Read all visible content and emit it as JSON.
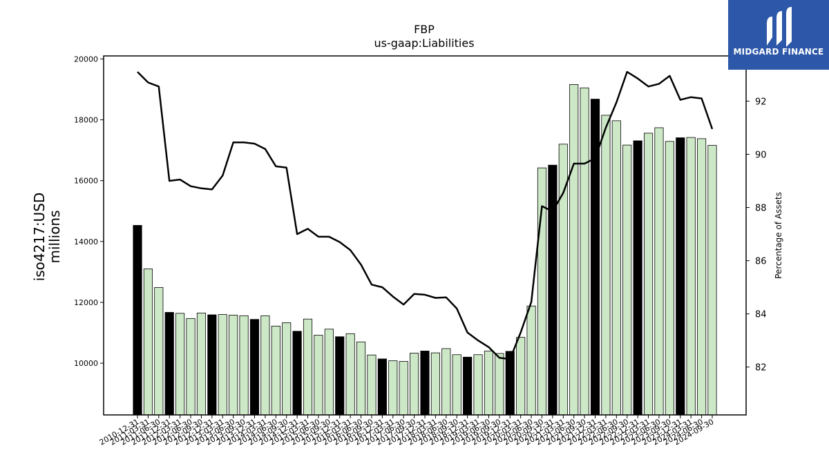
{
  "chart_data": {
    "type": "bar+line",
    "title": "FBP",
    "subtitle": "us-gaap:Liabilities",
    "ylabel_left": "iso4217:USD\nmillions",
    "ylabel_right": "Percentage of Assets",
    "ylim_left": [
      8300,
      20100
    ],
    "ylim_right": [
      80.2,
      93.7
    ],
    "yticks_left": [
      10000,
      12000,
      14000,
      16000,
      18000,
      20000
    ],
    "yticks_right": [
      82,
      84,
      86,
      88,
      90,
      92
    ],
    "grid": false,
    "legend": "none",
    "colors": {
      "bar_q4": "#000000",
      "bar_other": "#cce8c6",
      "bar_edge": "#000000",
      "line": "#000000"
    },
    "categories": [
      "2010-12-31",
      "2011-03-31",
      "2011-06-30",
      "2011-12-31",
      "2012-03-31",
      "2012-06-30",
      "2012-09-30",
      "2012-12-31",
      "2013-03-31",
      "2013-06-30",
      "2013-09-30",
      "2013-12-31",
      "2014-03-31",
      "2014-06-30",
      "2014-09-30",
      "2014-12-31",
      "2015-03-31",
      "2015-06-30",
      "2015-09-30",
      "2015-12-31",
      "2016-03-31",
      "2016-06-30",
      "2016-09-30",
      "2016-12-31",
      "2017-03-31",
      "2017-06-30",
      "2017-09-30",
      "2017-12-31",
      "2018-03-31",
      "2018-06-30",
      "2018-09-30",
      "2018-12-31",
      "2019-03-31",
      "2019-06-30",
      "2019-09-30",
      "2019-12-31",
      "2020-03-31",
      "2020-06-30",
      "2020-09-30",
      "2020-12-31",
      "2021-03-31",
      "2021-06-30",
      "2021-09-30",
      "2021-12-31",
      "2022-03-31",
      "2022-06-30",
      "2022-09-30",
      "2022-12-31",
      "2023-03-31",
      "2023-06-30",
      "2023-09-30",
      "2023-12-31",
      "2024-03-31",
      "2024-06-30",
      "2024-09-30"
    ],
    "series": [
      {
        "kind": "bar",
        "values": [
          14530,
          13100,
          12490,
          11670,
          11640,
          11470,
          11650,
          11590,
          11600,
          11580,
          11560,
          11440,
          11560,
          11220,
          11330,
          11050,
          11450,
          10920,
          11120,
          10870,
          10970,
          10700,
          10270,
          10140,
          10080,
          10060,
          10330,
          10400,
          10340,
          10480,
          10280,
          10200,
          10280,
          10400,
          10320,
          10390,
          10850,
          11880,
          16420,
          16510,
          17200,
          19160,
          19050,
          18680,
          18150,
          17970,
          17170,
          17310,
          17560,
          17740,
          17290,
          17410,
          17420,
          17380,
          17160
        ],
        "q4": [
          true,
          false,
          false,
          true,
          false,
          false,
          false,
          true,
          false,
          false,
          false,
          true,
          false,
          false,
          false,
          true,
          false,
          false,
          false,
          true,
          false,
          false,
          false,
          true,
          false,
          false,
          false,
          true,
          false,
          false,
          false,
          true,
          false,
          false,
          false,
          true,
          false,
          false,
          false,
          true,
          false,
          false,
          false,
          true,
          false,
          false,
          false,
          true,
          false,
          false,
          false,
          true,
          false,
          false,
          false
        ]
      },
      {
        "kind": "line",
        "axis": "right",
        "values": [
          93.1,
          92.7,
          92.55,
          89.0,
          89.05,
          88.8,
          88.72,
          88.68,
          89.2,
          90.45,
          90.45,
          90.4,
          90.2,
          89.55,
          89.5,
          87.0,
          87.2,
          86.9,
          86.9,
          86.7,
          86.4,
          85.85,
          85.1,
          85.0,
          84.65,
          84.35,
          84.75,
          84.72,
          84.6,
          84.62,
          84.2,
          83.3,
          83.0,
          82.75,
          82.35,
          82.3,
          83.3,
          84.45,
          88.05,
          87.85,
          88.55,
          89.65,
          89.65,
          89.85,
          91.0,
          91.95,
          93.1,
          92.85,
          92.55,
          92.65,
          92.95,
          92.05,
          92.15,
          92.1,
          90.95
        ]
      }
    ]
  },
  "logo": {
    "text": "MIDGARD FINANCE"
  }
}
